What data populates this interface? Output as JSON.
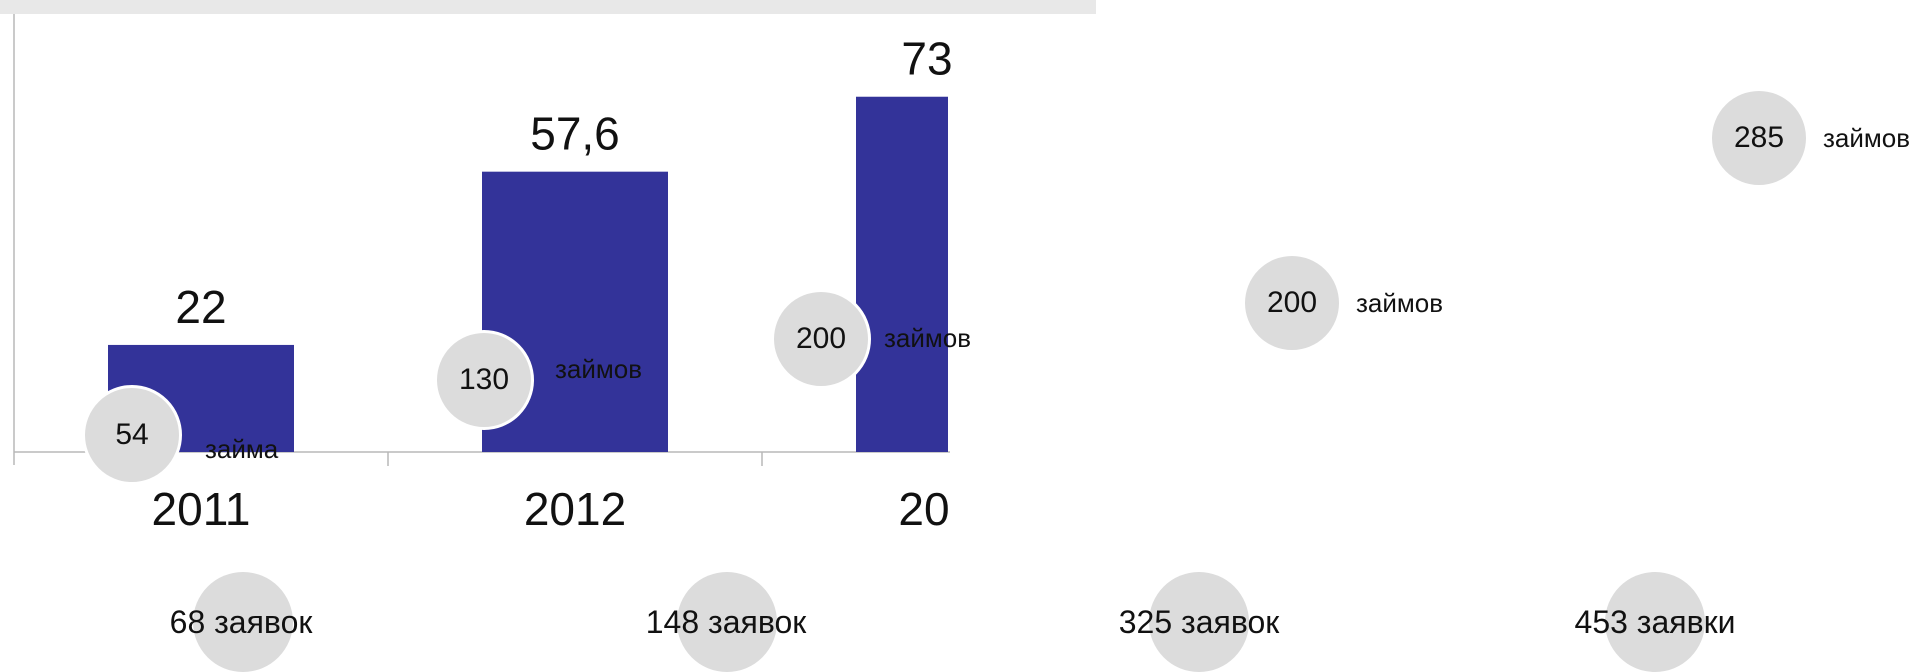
{
  "chart_data": {
    "type": "bar",
    "categories": [
      "2011",
      "2012",
      "20"
    ],
    "values": [
      22,
      57.6,
      73
    ],
    "value_labels": [
      "22",
      "57,6",
      "73"
    ],
    "colors": {
      "bar": "#333399",
      "bubble": "#dcdcdc",
      "band": "#e8e8e8"
    },
    "ylim": [
      0,
      90
    ],
    "grid": false
  },
  "loan_bubbles": [
    {
      "number": "54",
      "word": "займа"
    },
    {
      "number": "130",
      "word": "займов"
    },
    {
      "number": "200",
      "word": "займов"
    },
    {
      "number": "200",
      "word": "займов"
    },
    {
      "number": "285",
      "word": "займов"
    }
  ],
  "applications": [
    {
      "label": "68 заявок"
    },
    {
      "label": "148 заявок"
    },
    {
      "label": "325 заявок"
    },
    {
      "label": "453 заявки"
    }
  ]
}
